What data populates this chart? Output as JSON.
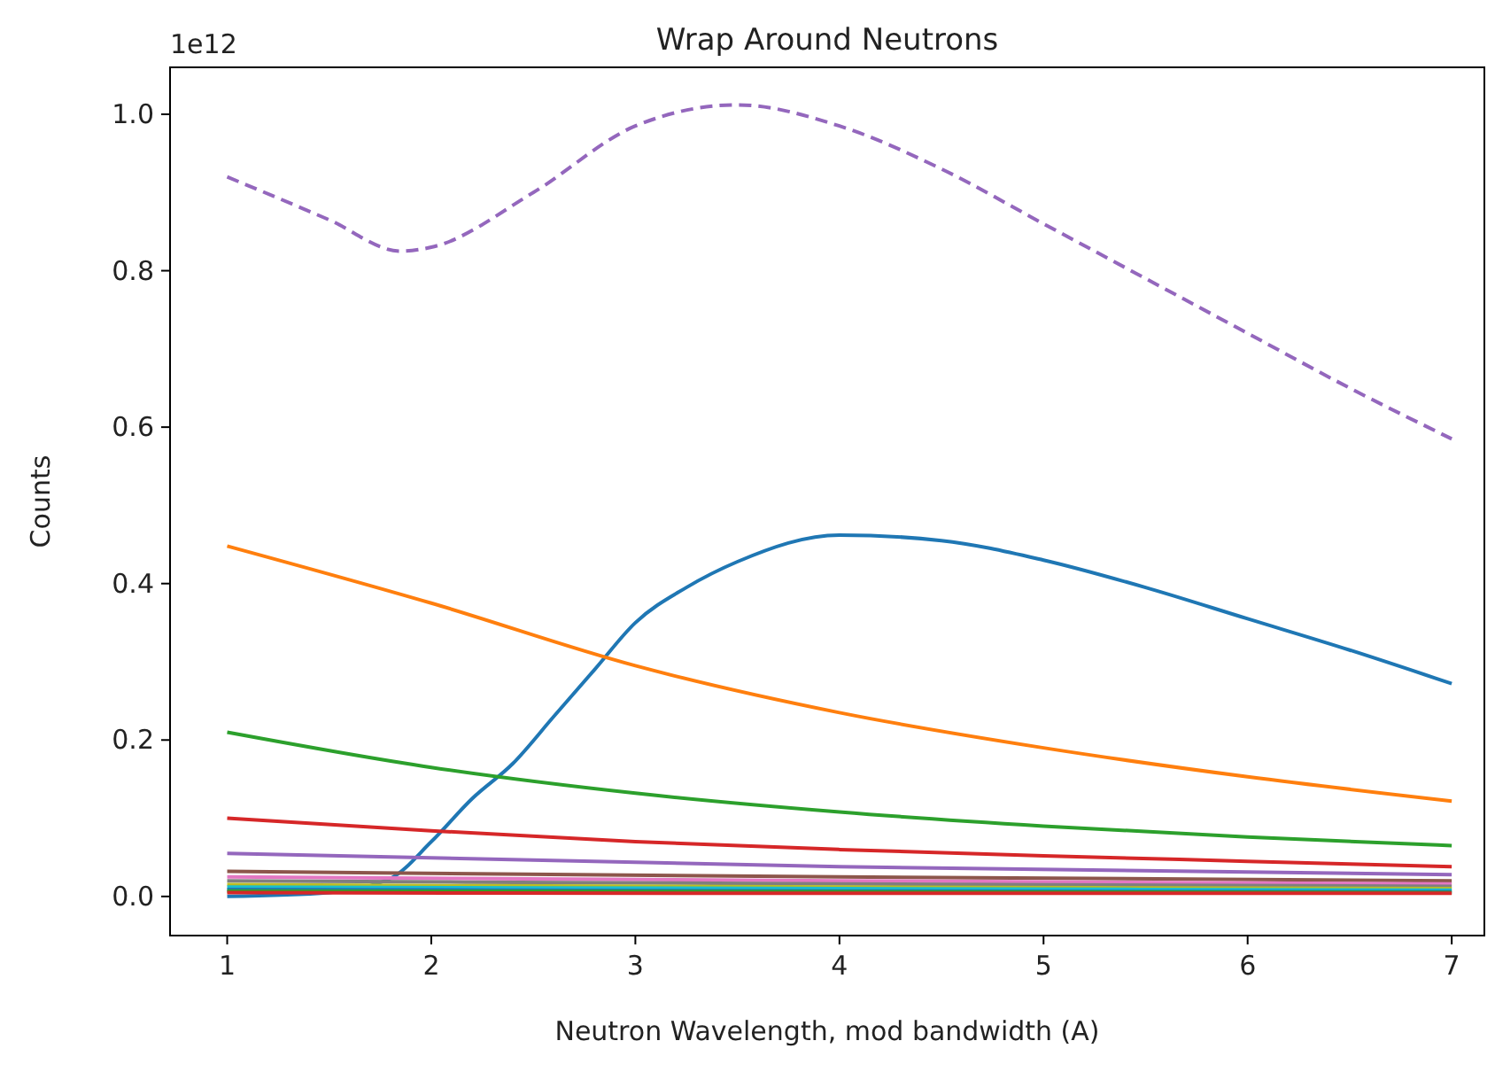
{
  "chart_data": {
    "type": "line",
    "title": "Wrap Around Neutrons",
    "xlabel": "Neutron Wavelength, mod bandwidth (A)",
    "ylabel": "Counts",
    "annotations": [
      "1e12"
    ],
    "xlim": [
      0.72,
      7.16
    ],
    "ylim": [
      -0.05,
      1.06
    ],
    "xticks": [
      1,
      2,
      3,
      4,
      5,
      6,
      7
    ],
    "yticks": [
      {
        "value": 0,
        "label": "0.0"
      },
      {
        "value": 0.2,
        "label": "0.2"
      },
      {
        "value": 0.4,
        "label": "0.4"
      },
      {
        "value": 0.6,
        "label": "0.6"
      },
      {
        "value": 0.8,
        "label": "0.8"
      },
      {
        "value": 1,
        "label": "1.0"
      }
    ],
    "grid": false,
    "marker": "none",
    "series": [
      {
        "color": "#1f77b4",
        "x": [
          1,
          1.5,
          1.8,
          2,
          2.2,
          2.4,
          2.6,
          2.8,
          3,
          3.25,
          3.5,
          4,
          4.5,
          5,
          5.5,
          6,
          6.5,
          7
        ],
        "values": [
          0,
          0.005,
          0.023,
          0.07,
          0.125,
          0.17,
          0.23,
          0.29,
          0.35,
          0.395,
          0.428,
          0.462,
          0.455,
          0.43,
          0.395,
          0.355,
          0.315,
          0.272
        ]
      },
      {
        "color": "#ff7f0e",
        "x": [
          1,
          2,
          3,
          4,
          5,
          6,
          7
        ],
        "values": [
          0.448,
          0.375,
          0.295,
          0.235,
          0.19,
          0.153,
          0.122
        ]
      },
      {
        "color": "#2ca02c",
        "x": [
          1,
          2,
          3,
          4,
          5,
          6,
          7
        ],
        "values": [
          0.21,
          0.165,
          0.132,
          0.108,
          0.09,
          0.076,
          0.065
        ]
      },
      {
        "color": "#d62728",
        "x": [
          1,
          2,
          3,
          4,
          5,
          6,
          7
        ],
        "values": [
          0.1,
          0.084,
          0.07,
          0.06,
          0.052,
          0.045,
          0.038
        ]
      },
      {
        "color": "#9467bd",
        "x": [
          1,
          4,
          7
        ],
        "values": [
          0.055,
          0.038,
          0.028
        ]
      },
      {
        "color": "#8c564b",
        "x": [
          1,
          4,
          7
        ],
        "values": [
          0.032,
          0.025,
          0.02
        ]
      },
      {
        "color": "#e377c2",
        "x": [
          1,
          4,
          7
        ],
        "values": [
          0.025,
          0.02,
          0.016
        ]
      },
      {
        "color": "#7f7f7f",
        "x": [
          1,
          4,
          7
        ],
        "values": [
          0.02,
          0.016,
          0.013
        ]
      },
      {
        "color": "#bcbd22",
        "x": [
          1,
          4,
          7
        ],
        "values": [
          0.015,
          0.012,
          0.01
        ]
      },
      {
        "color": "#17becf",
        "x": [
          1,
          4,
          7
        ],
        "values": [
          0.012,
          0.01,
          0.008
        ]
      },
      {
        "color": "#1f77b4",
        "x": [
          1,
          4,
          7
        ],
        "values": [
          0.009,
          0.007,
          0.006
        ]
      },
      {
        "color": "#2ca02c",
        "x": [
          1,
          4,
          7
        ],
        "values": [
          0.007,
          0.006,
          0.005
        ]
      },
      {
        "color": "#d62728",
        "x": [
          1,
          4,
          7
        ],
        "values": [
          0.005,
          0.004,
          0.004
        ]
      },
      {
        "color": "#9467bd",
        "line_style": "dashed",
        "x": [
          1,
          1.5,
          1.85,
          2,
          2.5,
          3,
          3.5,
          4,
          4.5,
          5,
          5.5,
          6,
          6.5,
          7
        ],
        "values": [
          0.92,
          0.865,
          0.825,
          0.83,
          0.9,
          0.985,
          1.012,
          0.985,
          0.93,
          0.86,
          0.79,
          0.72,
          0.65,
          0.585
        ]
      }
    ]
  }
}
